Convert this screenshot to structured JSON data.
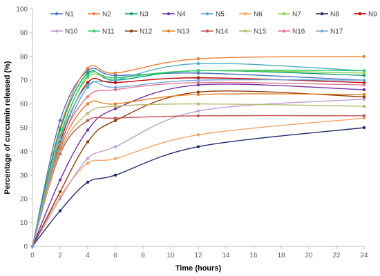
{
  "chart_data": {
    "type": "line",
    "title": "",
    "xlabel": "Time (hours)",
    "ylabel": "Percentage of curcumin released (%)",
    "xlim": [
      0,
      24
    ],
    "ylim": [
      0,
      100
    ],
    "xticks": [
      0,
      2,
      4,
      6,
      8,
      10,
      12,
      14,
      16,
      18,
      20,
      22,
      24
    ],
    "yticks": [
      0,
      10,
      20,
      30,
      40,
      50,
      60,
      70,
      80,
      90,
      100
    ],
    "grid": false,
    "legend": "top",
    "x": [
      0,
      2,
      4,
      6,
      12,
      24
    ],
    "series": [
      {
        "name": "N1",
        "color": "#4472C4",
        "values": [
          0,
          53,
          74,
          72,
          73,
          70
        ]
      },
      {
        "name": "N2",
        "color": "#ED7D31",
        "values": [
          0,
          50,
          75,
          73,
          79,
          80
        ]
      },
      {
        "name": "N3",
        "color": "#009E73",
        "values": [
          0,
          49,
          73,
          70,
          74,
          72
        ]
      },
      {
        "name": "N4",
        "color": "#7030A0",
        "values": [
          0,
          28,
          49,
          58,
          68,
          66
        ]
      },
      {
        "name": "N5",
        "color": "#4BACC6",
        "values": [
          0,
          42,
          67,
          70,
          77,
          74
        ]
      },
      {
        "name": "N6",
        "color": "#F4A460",
        "values": [
          0,
          21,
          35,
          37,
          47,
          54
        ]
      },
      {
        "name": "N7",
        "color": "#92D050",
        "values": [
          0,
          47,
          71,
          71,
          74,
          73
        ]
      },
      {
        "name": "N8",
        "color": "#1F2A6B",
        "values": [
          0,
          15,
          27,
          30,
          42,
          50
        ]
      },
      {
        "name": "N9",
        "color": "#C00000",
        "values": [
          0,
          44,
          69,
          69,
          71,
          69
        ]
      },
      {
        "name": "N10",
        "color": "#C39BD3",
        "values": [
          0,
          20,
          37,
          42,
          57,
          62
        ]
      },
      {
        "name": "N11",
        "color": "#2ECC71",
        "values": [
          0,
          46,
          72,
          71,
          74,
          74
        ]
      },
      {
        "name": "N12",
        "color": "#8B3A0F",
        "values": [
          0,
          23,
          44,
          53,
          65,
          63
        ]
      },
      {
        "name": "N13",
        "color": "#E67E22",
        "values": [
          0,
          41,
          60,
          60,
          64,
          64
        ]
      },
      {
        "name": "N14",
        "color": "#C0504D",
        "values": [
          0,
          39,
          53,
          54,
          55,
          55
        ]
      },
      {
        "name": "N15",
        "color": "#B8B86B",
        "values": [
          0,
          40,
          56,
          59,
          60,
          59
        ]
      },
      {
        "name": "N16",
        "color": "#E5738F",
        "values": [
          0,
          43,
          63,
          66,
          69,
          68
        ]
      },
      {
        "name": "N17",
        "color": "#6FA8DC",
        "values": [
          0,
          45,
          68,
          67,
          70,
          70
        ]
      }
    ]
  }
}
